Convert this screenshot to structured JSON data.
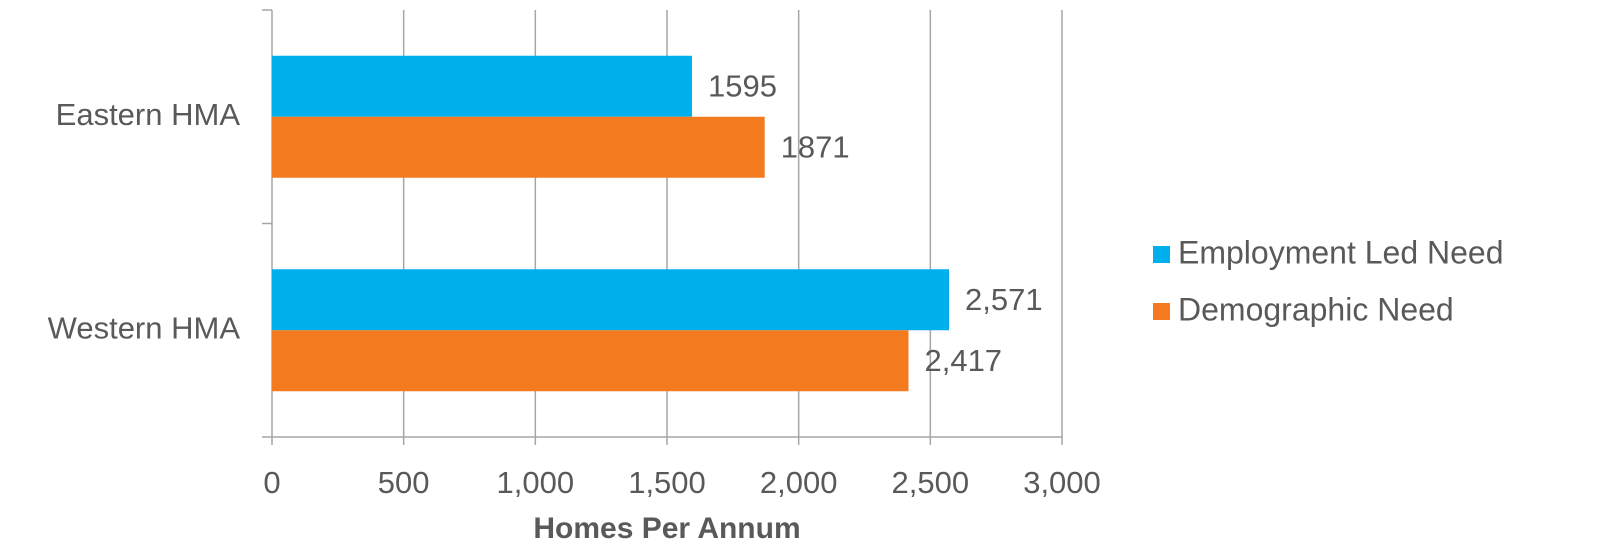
{
  "chart_data": {
    "type": "bar",
    "orientation": "horizontal",
    "xlabel": "Homes Per Annum",
    "categories": [
      "Eastern HMA",
      "Western HMA"
    ],
    "series": [
      {
        "name": "Employment Led Need",
        "color": "#00b0ec",
        "values": [
          1595,
          2571
        ],
        "value_labels": [
          "1595",
          "2,571"
        ]
      },
      {
        "name": "Demographic Need",
        "color": "#f47a20",
        "values": [
          1871,
          2417
        ],
        "value_labels": [
          "1871",
          "2,417"
        ]
      }
    ],
    "xlim": [
      0,
      3000
    ],
    "xticks": [
      0,
      500,
      {
        "value": 1000,
        "label": "1,000"
      },
      {
        "value": 1500,
        "label": "1,500"
      },
      {
        "value": 2000,
        "label": "2,000"
      },
      {
        "value": 2500,
        "label": "2,500"
      },
      {
        "value": 3000,
        "label": "3,000"
      }
    ],
    "grid": true,
    "legend": "right"
  }
}
